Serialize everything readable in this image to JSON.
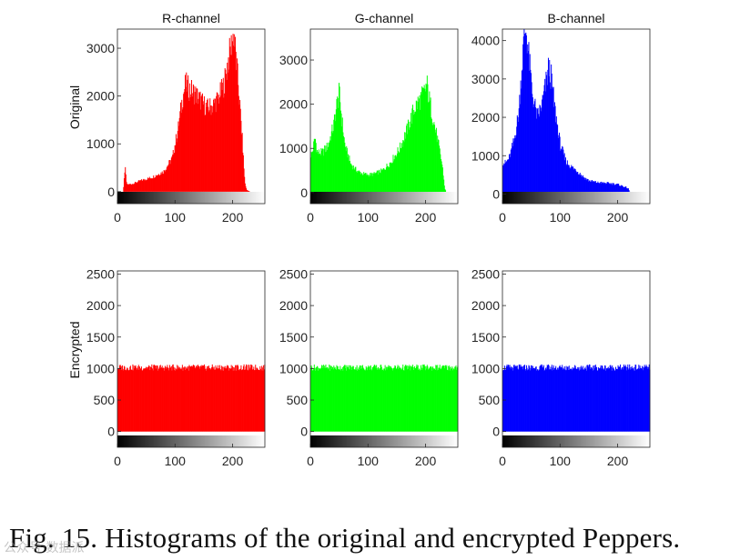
{
  "caption": "Fig. 15. Histograms of the original and encrypted Peppers.",
  "watermark": "公众号·数据派",
  "chart_data": [
    {
      "type": "bar",
      "title": "R-channel",
      "ylabel": "Original",
      "color": "#ff0000",
      "xlim": [
        0,
        256
      ],
      "ylim": [
        -250,
        3400
      ],
      "xticks": [
        0,
        100,
        200
      ],
      "yticks": [
        0,
        1000,
        2000,
        3000
      ],
      "profile": [
        [
          0,
          0
        ],
        [
          10,
          0
        ],
        [
          13,
          520
        ],
        [
          16,
          150
        ],
        [
          25,
          160
        ],
        [
          40,
          230
        ],
        [
          60,
          300
        ],
        [
          80,
          420
        ],
        [
          95,
          700
        ],
        [
          105,
          1300
        ],
        [
          112,
          1900
        ],
        [
          118,
          2250
        ],
        [
          125,
          2150
        ],
        [
          135,
          2050
        ],
        [
          145,
          1900
        ],
        [
          155,
          1750
        ],
        [
          165,
          1800
        ],
        [
          175,
          1950
        ],
        [
          185,
          2250
        ],
        [
          193,
          2800
        ],
        [
          200,
          3200
        ],
        [
          202,
          3350
        ],
        [
          205,
          2900
        ],
        [
          210,
          2200
        ],
        [
          216,
          1200
        ],
        [
          221,
          200
        ],
        [
          224,
          40
        ],
        [
          230,
          0
        ],
        [
          256,
          0
        ]
      ]
    },
    {
      "type": "bar",
      "title": "G-channel",
      "ylabel": "",
      "color": "#00ff00",
      "xlim": [
        0,
        256
      ],
      "ylim": [
        -250,
        3700
      ],
      "xticks": [
        0,
        100,
        200
      ],
      "yticks": [
        0,
        1000,
        2000,
        3000
      ],
      "profile": [
        [
          0,
          850
        ],
        [
          3,
          900
        ],
        [
          8,
          1250
        ],
        [
          12,
          900
        ],
        [
          20,
          900
        ],
        [
          30,
          1050
        ],
        [
          40,
          1500
        ],
        [
          47,
          2100
        ],
        [
          50,
          2250
        ],
        [
          55,
          1600
        ],
        [
          60,
          1050
        ],
        [
          70,
          650
        ],
        [
          80,
          500
        ],
        [
          90,
          430
        ],
        [
          100,
          400
        ],
        [
          110,
          420
        ],
        [
          125,
          500
        ],
        [
          140,
          700
        ],
        [
          155,
          1000
        ],
        [
          170,
          1500
        ],
        [
          180,
          1900
        ],
        [
          190,
          2100
        ],
        [
          197,
          2250
        ],
        [
          202,
          2450
        ],
        [
          207,
          2050
        ],
        [
          215,
          1550
        ],
        [
          222,
          1100
        ],
        [
          229,
          600
        ],
        [
          233,
          100
        ],
        [
          236,
          0
        ],
        [
          256,
          0
        ]
      ]
    },
    {
      "type": "bar",
      "title": "B-channel",
      "ylabel": "",
      "color": "#0000ff",
      "xlim": [
        0,
        256
      ],
      "ylim": [
        -250,
        4300
      ],
      "xticks": [
        0,
        100,
        200
      ],
      "yticks": [
        0,
        1000,
        2000,
        3000,
        4000
      ],
      "profile": [
        [
          0,
          850
        ],
        [
          5,
          800
        ],
        [
          12,
          950
        ],
        [
          20,
          1400
        ],
        [
          28,
          2100
        ],
        [
          33,
          3200
        ],
        [
          38,
          4200
        ],
        [
          41,
          4300
        ],
        [
          46,
          3500
        ],
        [
          52,
          2600
        ],
        [
          60,
          2000
        ],
        [
          68,
          2300
        ],
        [
          75,
          2850
        ],
        [
          80,
          3300
        ],
        [
          85,
          3000
        ],
        [
          90,
          2300
        ],
        [
          100,
          1300
        ],
        [
          110,
          850
        ],
        [
          120,
          700
        ],
        [
          130,
          600
        ],
        [
          140,
          450
        ],
        [
          150,
          350
        ],
        [
          165,
          300
        ],
        [
          185,
          280
        ],
        [
          200,
          250
        ],
        [
          210,
          200
        ],
        [
          218,
          150
        ],
        [
          221,
          50
        ],
        [
          224,
          0
        ],
        [
          256,
          0
        ]
      ]
    },
    {
      "type": "bar",
      "title": "",
      "ylabel": "Encrypted",
      "color": "#ff0000",
      "xlim": [
        0,
        256
      ],
      "ylim": [
        -250,
        2550
      ],
      "xticks": [
        0,
        100,
        200
      ],
      "yticks": [
        0,
        500,
        1000,
        1500,
        2000,
        2500
      ],
      "profile": [
        [
          0,
          1020
        ],
        [
          256,
          1020
        ]
      ]
    },
    {
      "type": "bar",
      "title": "",
      "ylabel": "",
      "color": "#00ff00",
      "xlim": [
        0,
        256
      ],
      "ylim": [
        -250,
        2550
      ],
      "xticks": [
        0,
        100,
        200
      ],
      "yticks": [
        0,
        500,
        1000,
        1500,
        2000,
        2500
      ],
      "profile": [
        [
          0,
          1020
        ],
        [
          256,
          1020
        ]
      ]
    },
    {
      "type": "bar",
      "title": "",
      "ylabel": "",
      "color": "#0000ff",
      "xlim": [
        0,
        256
      ],
      "ylim": [
        -250,
        2550
      ],
      "xticks": [
        0,
        100,
        200
      ],
      "yticks": [
        0,
        500,
        1000,
        1500,
        2000,
        2500
      ],
      "profile": [
        [
          0,
          1020
        ],
        [
          256,
          1020
        ]
      ]
    }
  ]
}
